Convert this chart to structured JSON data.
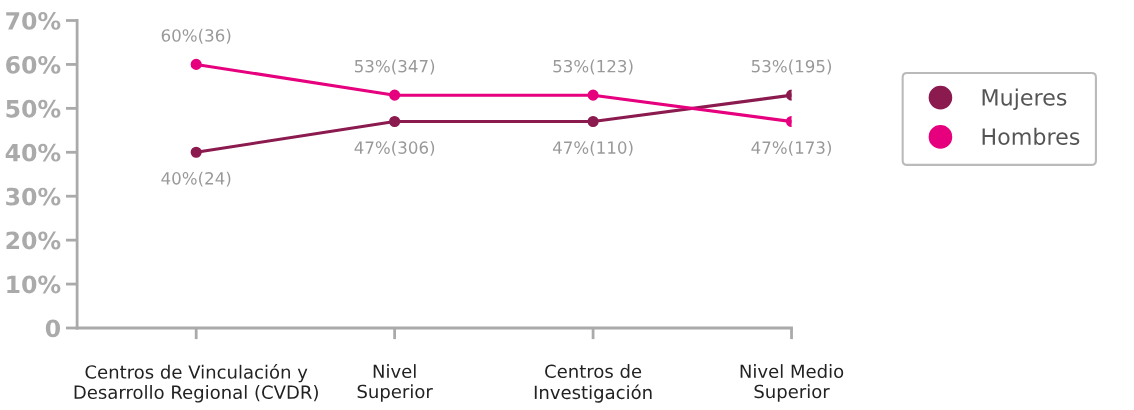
{
  "chart_data": {
    "type": "line",
    "categories": [
      "Centros de Vinculación y\nDesarrollo Regional (CVDR)",
      "Nivel\nSuperior",
      "Centros de\nInvestigación",
      "Nivel Medio\nSuperior"
    ],
    "series": [
      {
        "name": "Mujeres",
        "color": "#8b1a4f",
        "values": [
          40,
          47,
          47,
          53
        ],
        "value_labels": [
          "40%(24)",
          "47%(306)",
          "47%(110)",
          "53%(195)"
        ]
      },
      {
        "name": "Hombres",
        "color": "#e6007e",
        "values": [
          60,
          53,
          53,
          47
        ],
        "value_labels": [
          "60%(36)",
          "53%(347)",
          "53%(123)",
          "47%(173)"
        ]
      }
    ],
    "ylim": [
      0,
      70
    ],
    "yticks": [
      0,
      {
        "value": 10,
        "label": "10%"
      },
      {
        "value": 20,
        "label": "20%"
      },
      {
        "value": 30,
        "label": "30%"
      },
      {
        "value": 40,
        "label": "40%"
      },
      {
        "value": 50,
        "label": "50%"
      },
      {
        "value": 60,
        "label": "60%"
      },
      {
        "value": 70,
        "label": "70%"
      }
    ],
    "grid": false,
    "legend": "right",
    "marker": "circle",
    "line_style": "solid"
  }
}
